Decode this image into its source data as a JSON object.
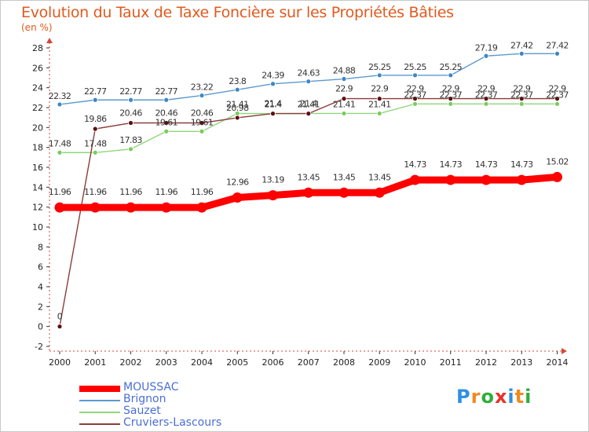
{
  "header": {
    "title": "Evolution du Taux de Taxe Foncière sur les Propriétés Bâties",
    "unit": "(en %)"
  },
  "chart_data": {
    "type": "line",
    "title": "Evolution du Taux de Taxe Foncière sur les Propriétés Bâties",
    "ylabel": "(en %)",
    "xlabel": "",
    "ylim": [
      -2,
      28
    ],
    "yticks": [
      -2,
      0,
      2,
      4,
      6,
      8,
      10,
      12,
      14,
      16,
      18,
      20,
      22,
      24,
      26,
      28
    ],
    "categories": [
      "2000",
      "2001",
      "2002",
      "2003",
      "2004",
      "2005",
      "2006",
      "2007",
      "2008",
      "2009",
      "2010",
      "2011",
      "2012",
      "2013",
      "2014"
    ],
    "grid": false,
    "legend_position": "bottom-left",
    "series": [
      {
        "name": "Brignon",
        "color": "#5a9ad0",
        "marker": "#3f86c4",
        "values": [
          22.32,
          22.77,
          22.77,
          22.77,
          23.22,
          23.8,
          24.39,
          24.63,
          24.88,
          25.25,
          25.25,
          25.25,
          27.19,
          27.42,
          27.42
        ],
        "labels": [
          "22.32",
          "22.77",
          "22.77",
          "22.77",
          "23.22",
          "23.8",
          "24.39",
          "24.63",
          "24.88",
          "25.25",
          "25.25",
          "25.25",
          "27.19",
          "27.42",
          "27.42"
        ]
      },
      {
        "name": "Sauzet",
        "color": "#8fd67a",
        "marker": "#7acb5e",
        "values": [
          17.48,
          17.48,
          17.83,
          19.61,
          19.61,
          21.41,
          21.4,
          21.41,
          21.41,
          21.41,
          22.37,
          22.37,
          22.37,
          22.37,
          22.37
        ],
        "labels": [
          "17.48",
          "17.48",
          "17.83",
          "19.61",
          "19.61",
          "21.41",
          "21.4",
          "21.41",
          "21.41",
          "21.41",
          "22.37",
          "22.37",
          "22.37",
          "22.37",
          "22.37"
        ]
      },
      {
        "name": "Cruviers-Lascours",
        "color": "#8c3b3b",
        "marker": "#5a1010",
        "values": [
          0,
          19.86,
          20.46,
          20.46,
          20.46,
          20.98,
          21.4,
          21.4,
          22.9,
          22.9,
          22.9,
          22.9,
          22.9,
          22.9,
          22.9
        ],
        "labels": [
          "0",
          "19.86",
          "20.46",
          "20.46",
          "20.46",
          "20.98",
          "21.4",
          "21.4",
          "22.9",
          "22.9",
          "22.9",
          "22.9",
          "22.9",
          "22.9",
          "22.9"
        ]
      },
      {
        "name": "MOUSSAC",
        "color": "#ff0000",
        "marker": "#ff0000",
        "values": [
          11.96,
          11.96,
          11.96,
          11.96,
          11.96,
          12.96,
          13.19,
          13.45,
          13.45,
          13.45,
          14.73,
          14.73,
          14.73,
          14.73,
          15.02
        ],
        "labels": [
          "11.96",
          "11.96",
          "11.96",
          "11.96",
          "11.96",
          "12.96",
          "13.19",
          "13.45",
          "13.45",
          "13.45",
          "14.73",
          "14.73",
          "14.73",
          "14.73",
          "15.02"
        ]
      }
    ]
  },
  "legend": {
    "items": [
      {
        "label": "MOUSSAC",
        "color": "#ff0000"
      },
      {
        "label": "Brignon",
        "color": "#5a9ad0"
      },
      {
        "label": "Sauzet",
        "color": "#8fd67a"
      },
      {
        "label": "Cruviers-Lascours",
        "color": "#8c3b3b"
      }
    ]
  },
  "logo": {
    "text": "Proxiti",
    "letters": [
      {
        "ch": "P",
        "color": "#2f8fe0"
      },
      {
        "ch": "r",
        "color": "#f08a1e"
      },
      {
        "ch": "o",
        "color": "#2fae3a"
      },
      {
        "ch": "x",
        "color": "#e8322a"
      },
      {
        "ch": "i",
        "color": "#2f8fe0"
      },
      {
        "ch": "t",
        "color": "#f08a1e"
      },
      {
        "ch": "i",
        "color": "#2fae3a"
      }
    ]
  }
}
